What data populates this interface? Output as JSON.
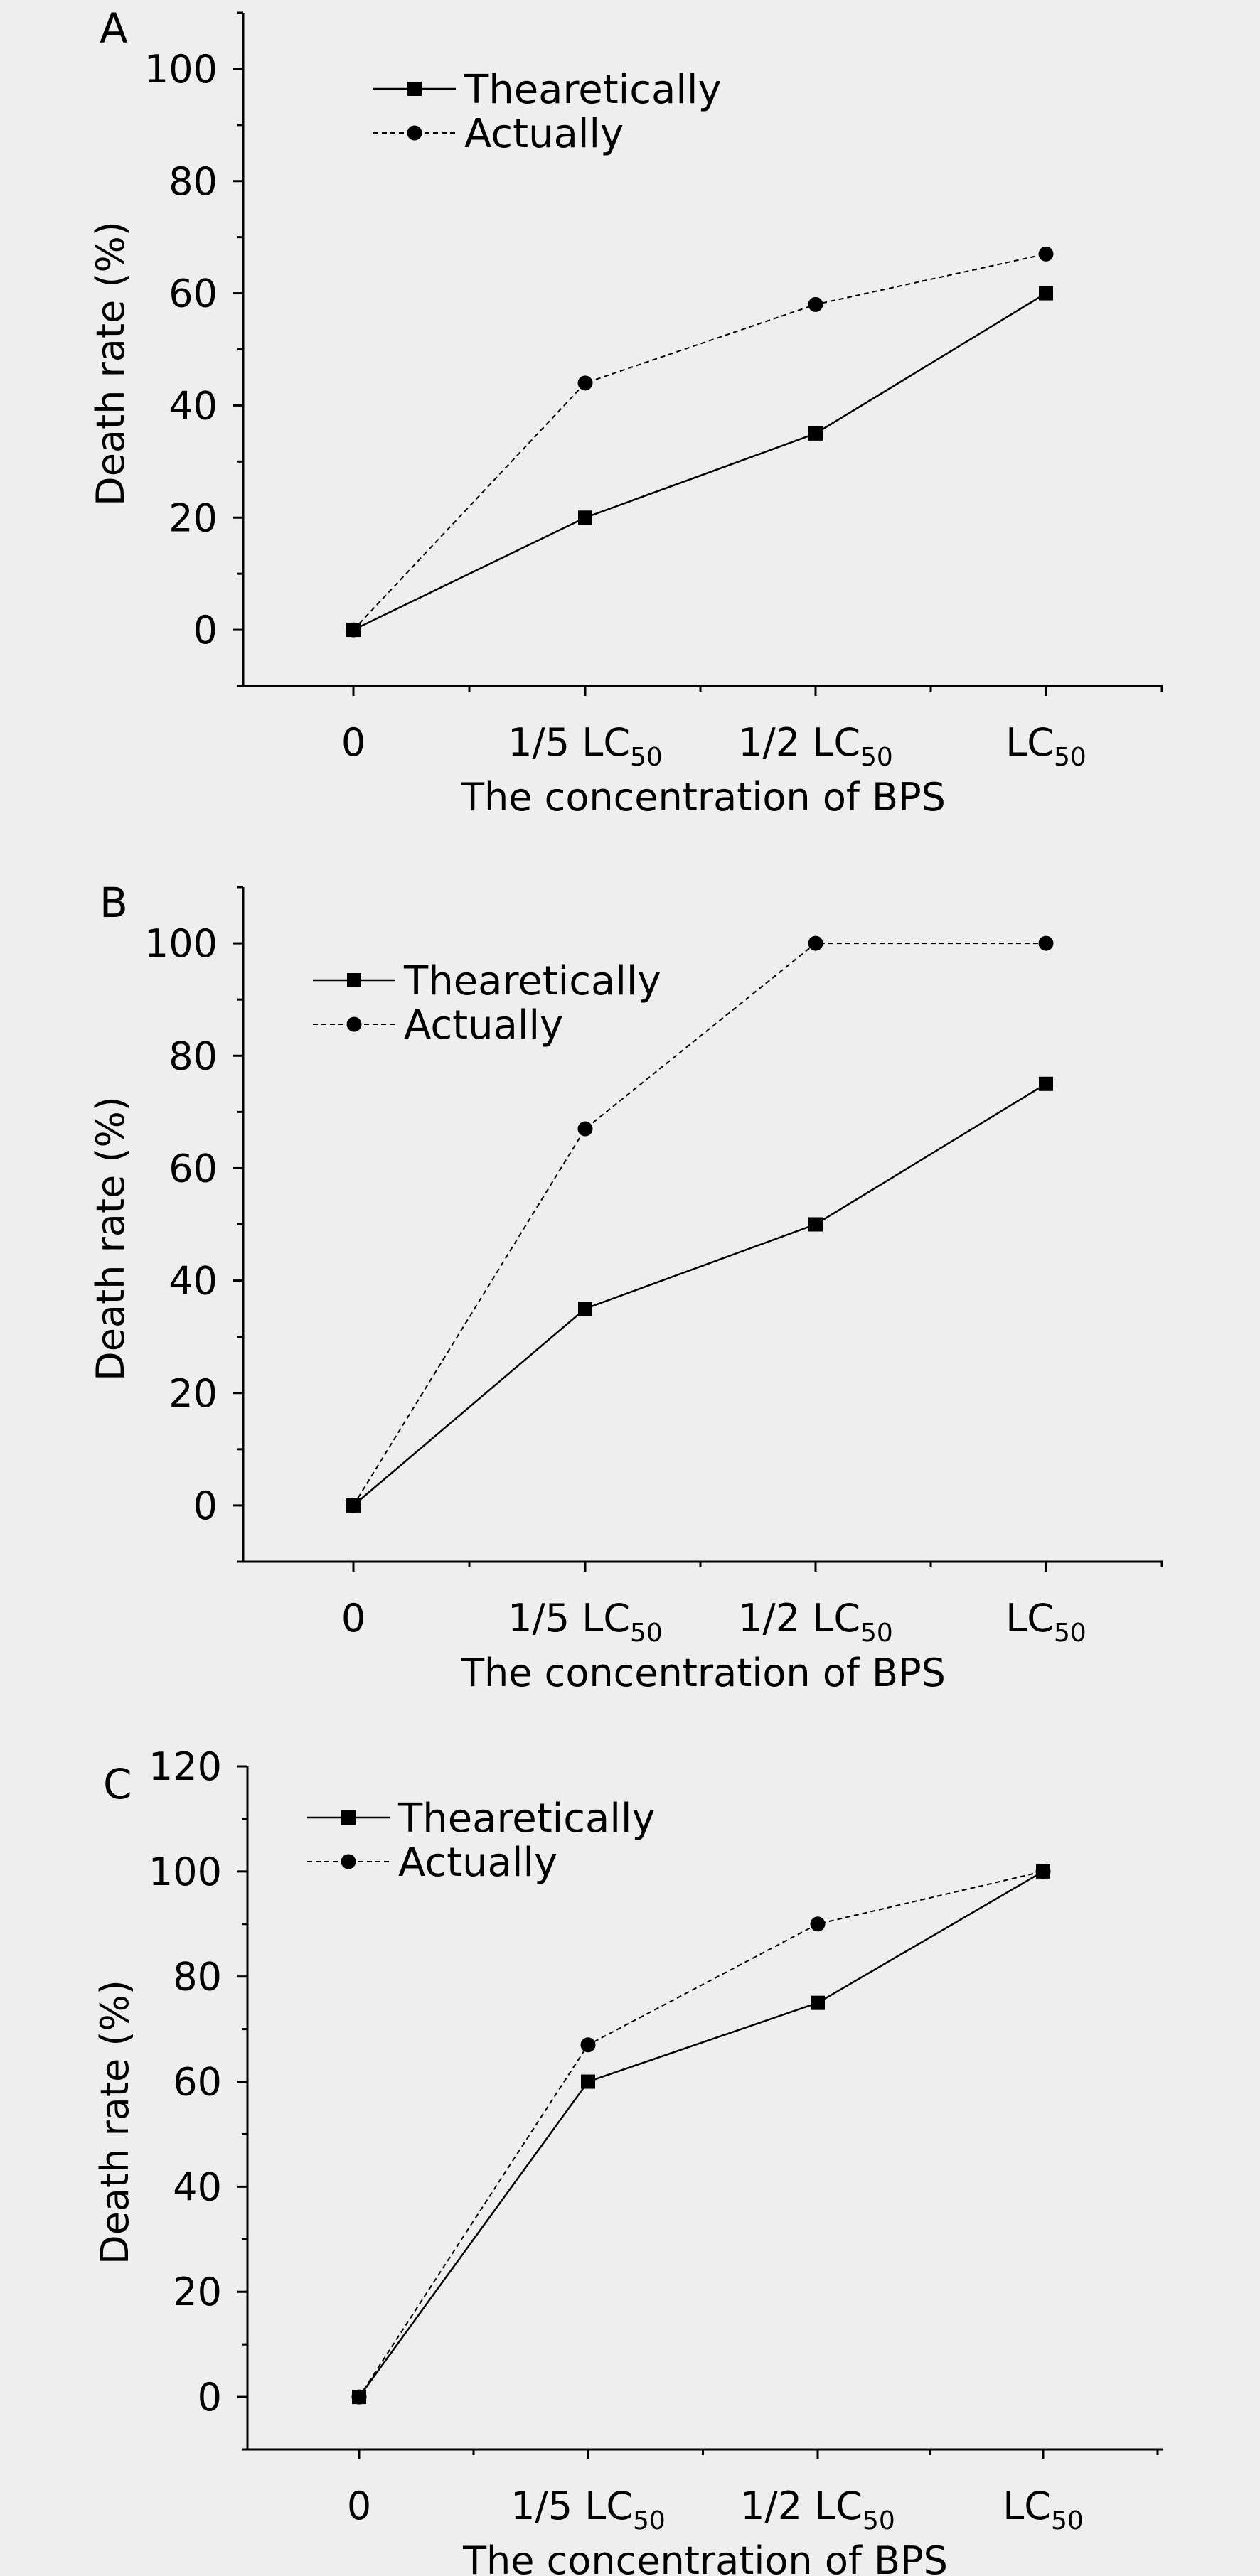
{
  "colors": {
    "background": "#eeeeee",
    "ink": "#000000"
  },
  "chart_data": [
    {
      "type": "line",
      "panel_label": "A",
      "categories": [
        "0",
        "1/5 LC",
        "1/2 LC",
        "LC"
      ],
      "category_subscripts": [
        "",
        "50",
        "50",
        "50"
      ],
      "xlabel": "The concentration of BPS",
      "ylabel": "Death rate (%)",
      "ylim": [
        -10,
        110
      ],
      "yticks": [
        0,
        20,
        40,
        60,
        80,
        100
      ],
      "legend_placement": "top-left",
      "series": [
        {
          "name": "Thearetically",
          "marker": "square",
          "line": "solid",
          "values": [
            0,
            20,
            35,
            60
          ]
        },
        {
          "name": "Actually",
          "marker": "circle",
          "line": "dashed",
          "values": [
            0,
            44,
            58,
            67
          ]
        }
      ]
    },
    {
      "type": "line",
      "panel_label": "B",
      "categories": [
        "0",
        "1/5 LC",
        "1/2 LC",
        "LC"
      ],
      "category_subscripts": [
        "",
        "50",
        "50",
        "50"
      ],
      "xlabel": "The concentration of BPS",
      "ylabel": "Death rate (%)",
      "ylim": [
        -10,
        110
      ],
      "yticks": [
        0,
        20,
        40,
        60,
        80,
        100
      ],
      "legend_placement": "top-left",
      "series": [
        {
          "name": "Thearetically",
          "marker": "square",
          "line": "solid",
          "values": [
            0,
            35,
            50,
            75
          ]
        },
        {
          "name": "Actually",
          "marker": "circle",
          "line": "dashed",
          "values": [
            0,
            67,
            100,
            100
          ]
        }
      ]
    },
    {
      "type": "line",
      "panel_label": "C",
      "categories": [
        "0",
        "1/5 LC",
        "1/2 LC",
        "LC"
      ],
      "category_subscripts": [
        "",
        "50",
        "50",
        "50"
      ],
      "xlabel": "The concentration of BPS",
      "ylabel": "Death rate (%)",
      "ylim": [
        -10,
        120
      ],
      "yticks": [
        0,
        20,
        40,
        60,
        80,
        100,
        120
      ],
      "legend_placement": "top-left",
      "series": [
        {
          "name": "Thearetically",
          "marker": "square",
          "line": "solid",
          "values": [
            0,
            60,
            75,
            100
          ]
        },
        {
          "name": "Actually",
          "marker": "circle",
          "line": "dashed",
          "values": [
            0,
            67,
            90,
            100
          ]
        }
      ]
    }
  ]
}
